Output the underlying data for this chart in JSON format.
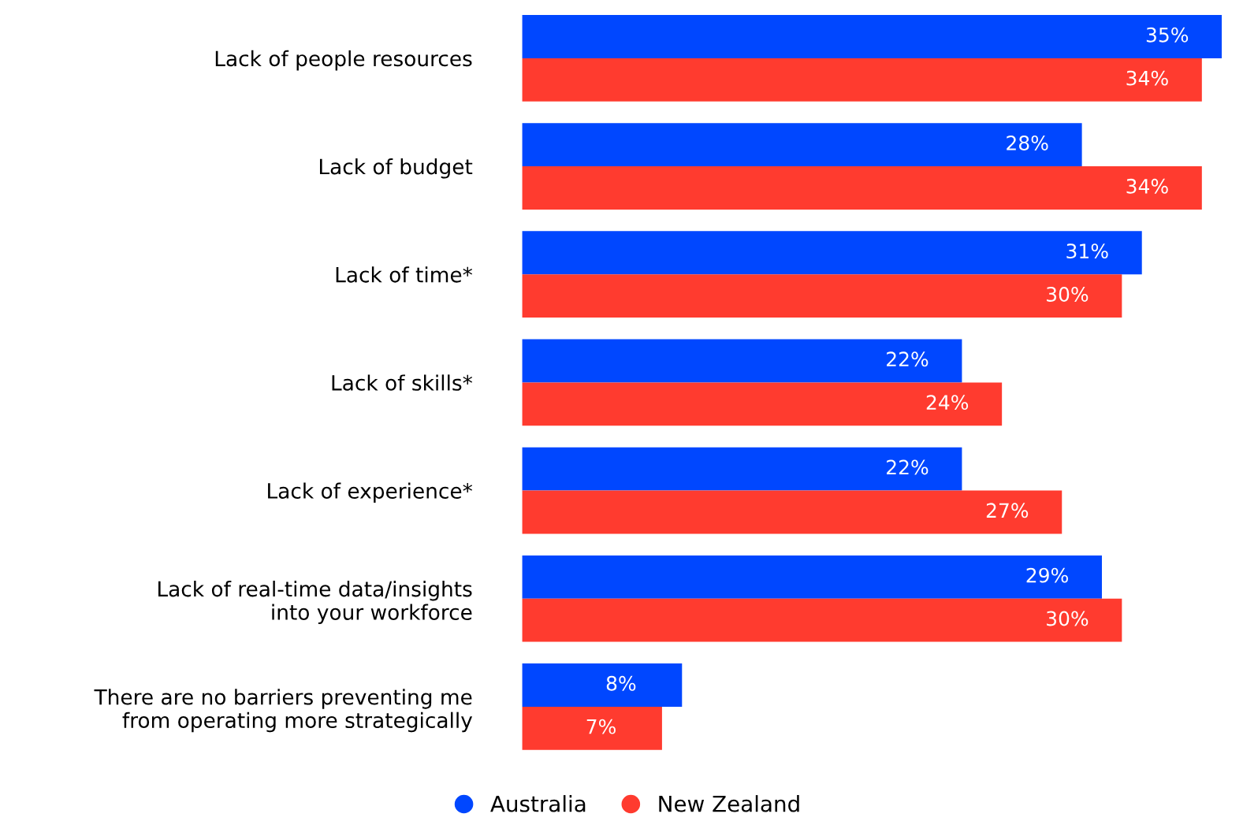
{
  "chart_data": {
    "type": "bar",
    "orientation": "horizontal",
    "categories": [
      "Lack of people resources",
      "Lack of budget",
      "Lack of time*",
      "Lack of skills*",
      "Lack of experience*",
      "Lack of real-time data/insights\ninto your workforce",
      "There are no barriers preventing me\nfrom operating more strategically"
    ],
    "series": [
      {
        "name": "Australia",
        "color": "#0047ff",
        "values": [
          35,
          28,
          31,
          22,
          22,
          29,
          8
        ],
        "value_labels": [
          "35%",
          "28%",
          "31%",
          "22%",
          "22%",
          "29%",
          "8%"
        ]
      },
      {
        "name": "New Zealand",
        "color": "#ff3b2f",
        "values": [
          34,
          34,
          30,
          24,
          27,
          30,
          7
        ],
        "value_labels": [
          "34%",
          "34%",
          "30%",
          "24%",
          "27%",
          "30%",
          "7%"
        ]
      }
    ],
    "legend": "bottom",
    "grid": false,
    "tick_labels": "y"
  }
}
